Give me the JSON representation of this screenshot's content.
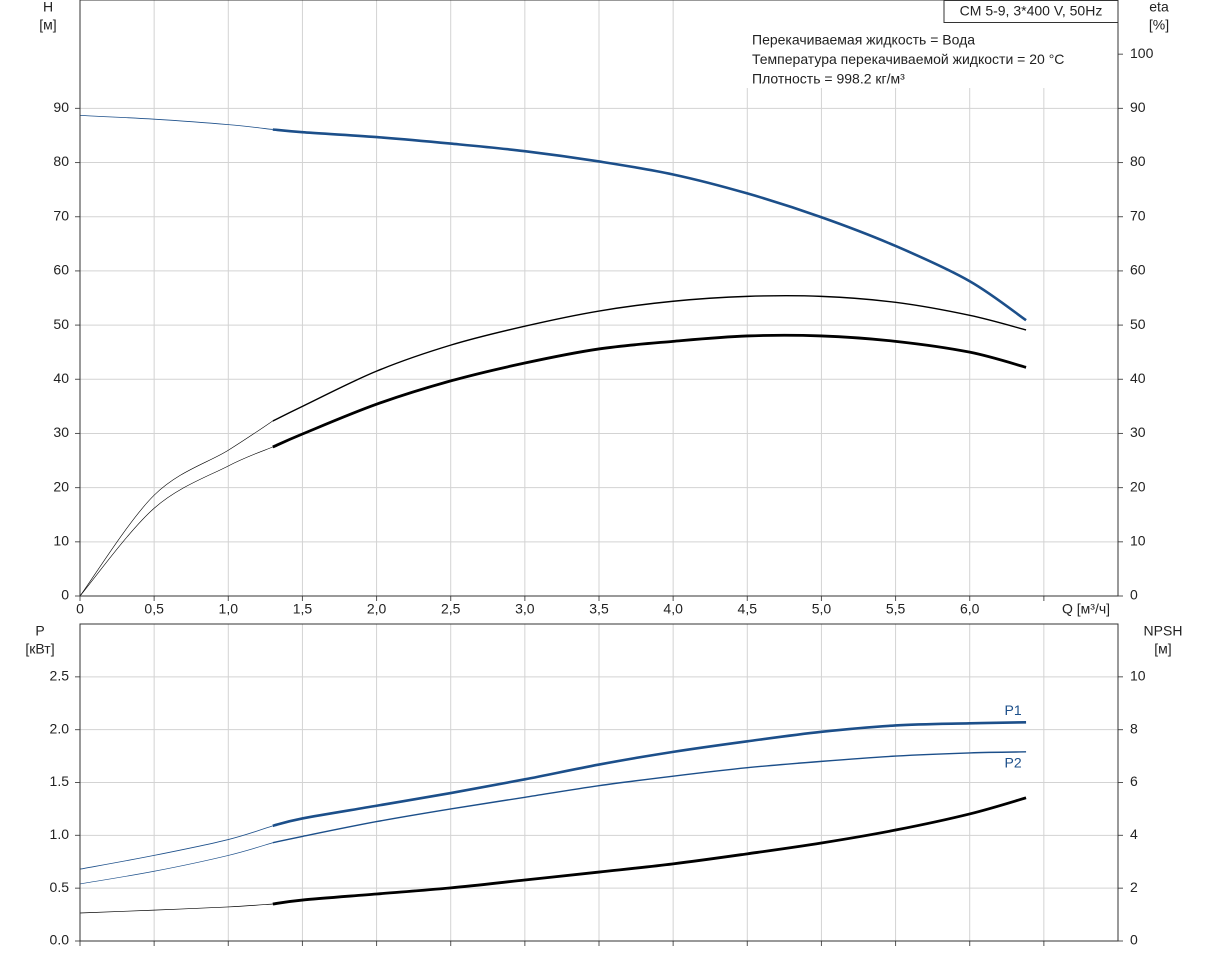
{
  "chart_data": [
    {
      "type": "line",
      "title": "CM 5-9, 3*400 V, 50Hz",
      "annotations": [
        "Перекачиваемая жидкость = Вода",
        "Температура перекачиваемой жидкости = 20 °C",
        "Плотность = 998.2 кг/м³"
      ],
      "xlabel": "Q [м³/ч]",
      "ylabel": "H",
      "yunit": "[м]",
      "y2label": "eta",
      "y2unit": "[%]",
      "x": [
        0,
        0.5,
        1.0,
        1.3,
        1.5,
        2.0,
        2.5,
        3.0,
        3.5,
        4.0,
        4.5,
        5.0,
        5.5,
        6.0,
        6.38
      ],
      "xlim": [
        0,
        7
      ],
      "ylim": [
        0,
        110
      ],
      "y2lim": [
        0,
        110
      ],
      "xticks": [
        0,
        {
          "value": 0.5,
          "label": "0,5"
        },
        {
          "value": 1,
          "label": "1,0"
        },
        {
          "value": 1.5,
          "label": "1,5"
        },
        {
          "value": 2,
          "label": "2,0"
        },
        {
          "value": 2.5,
          "label": "2,5"
        },
        {
          "value": 3,
          "label": "3,0"
        },
        {
          "value": 3.5,
          "label": "3,5"
        },
        {
          "value": 4,
          "label": "4,0"
        },
        {
          "value": 4.5,
          "label": "4,5"
        },
        {
          "value": 5,
          "label": "5,0"
        },
        {
          "value": 5.5,
          "label": "5,5"
        },
        {
          "value": 6,
          "label": "6,0"
        }
      ],
      "xgrid": [
        0,
        0.5,
        1,
        1.5,
        2,
        2.5,
        3,
        3.5,
        4,
        4.5,
        5,
        5.5,
        6,
        6.5
      ],
      "yticks": [
        0,
        10,
        20,
        30,
        40,
        50,
        60,
        70,
        80,
        90
      ],
      "y2ticks": [
        0,
        10,
        20,
        30,
        40,
        50,
        60,
        70,
        80,
        90,
        100
      ],
      "grid": true,
      "series": [
        {
          "color": "#1c4f8a",
          "width": 0.8,
          "values": [
            88.7,
            88.0,
            87.0,
            86.1,
            null,
            null,
            null,
            null,
            null,
            null,
            null,
            null,
            null,
            null,
            null
          ]
        },
        {
          "color": "#1c4f8a",
          "width": 2.6,
          "values": [
            null,
            null,
            null,
            86.1,
            85.6,
            84.7,
            83.5,
            82.1,
            80.2,
            77.8,
            74.3,
            69.9,
            64.6,
            58.1,
            50.9
          ]
        },
        {
          "color": "#000000",
          "width": 0.6,
          "axis": "y2",
          "values": [
            0,
            18.6,
            26.9,
            32.3,
            null,
            null,
            null,
            null,
            null,
            null,
            null,
            null,
            null,
            null,
            null
          ]
        },
        {
          "color": "#000000",
          "width": 1.4,
          "axis": "y2",
          "values": [
            null,
            null,
            null,
            32.3,
            35.0,
            41.5,
            46.3,
            49.8,
            52.6,
            54.4,
            55.3,
            55.3,
            54.2,
            51.8,
            49.1
          ]
        },
        {
          "color": "#000000",
          "width": 0.6,
          "axis": "y2",
          "values": [
            0,
            16.2,
            24.0,
            27.5,
            null,
            null,
            null,
            null,
            null,
            null,
            null,
            null,
            null,
            null,
            null
          ]
        },
        {
          "color": "#000000",
          "width": 2.8,
          "axis": "y2",
          "values": [
            null,
            null,
            null,
            27.5,
            29.9,
            35.4,
            39.7,
            43.0,
            45.6,
            47.0,
            48.0,
            48.0,
            47.0,
            45.0,
            42.2
          ]
        }
      ]
    },
    {
      "type": "line",
      "ylabel": "P",
      "yunit": "[кВт]",
      "y2label": "NPSH",
      "y2unit": "[м]",
      "x": [
        0,
        0.5,
        1.0,
        1.3,
        1.5,
        2.0,
        2.5,
        3.0,
        3.5,
        4.0,
        4.5,
        5.0,
        5.5,
        6.0,
        6.38
      ],
      "xlim": [
        0,
        7
      ],
      "ylim": [
        0,
        3.0
      ],
      "y2lim": [
        0,
        12
      ],
      "xgrid": [
        0,
        0.5,
        1,
        1.5,
        2,
        2.5,
        3,
        3.5,
        4,
        4.5,
        5,
        5.5,
        6,
        6.5
      ],
      "yticks": [
        {
          "value": 0,
          "label": "0.0"
        },
        0.5,
        {
          "value": 1,
          "label": "1.0"
        },
        1.5,
        {
          "value": 2,
          "label": "2.0"
        },
        2.5
      ],
      "y2ticks": [
        0,
        2,
        4,
        6,
        8,
        10
      ],
      "grid": true,
      "series": [
        {
          "color": "#1c4f8a",
          "width": 0.8,
          "values": [
            0.68,
            0.81,
            0.96,
            1.09,
            null,
            null,
            null,
            null,
            null,
            null,
            null,
            null,
            null,
            null,
            null
          ]
        },
        {
          "name": "P1",
          "color": "#1c4f8a",
          "width": 2.6,
          "values": [
            null,
            null,
            null,
            1.09,
            1.16,
            1.28,
            1.4,
            1.53,
            1.67,
            1.79,
            1.89,
            1.98,
            2.04,
            2.06,
            2.07
          ]
        },
        {
          "color": "#1c4f8a",
          "width": 0.7,
          "values": [
            0.54,
            0.66,
            0.81,
            0.93,
            null,
            null,
            null,
            null,
            null,
            null,
            null,
            null,
            null,
            null,
            null
          ]
        },
        {
          "name": "P2",
          "color": "#1c4f8a",
          "width": 1.4,
          "values": [
            null,
            null,
            null,
            0.93,
            0.99,
            1.13,
            1.25,
            1.36,
            1.47,
            1.56,
            1.64,
            1.7,
            1.75,
            1.78,
            1.79
          ]
        },
        {
          "color": "#000000",
          "width": 0.7,
          "axis": "y2",
          "values": [
            1.06,
            1.17,
            1.29,
            1.4,
            null,
            null,
            null,
            null,
            null,
            null,
            null,
            null,
            null,
            null,
            null
          ]
        },
        {
          "color": "#000000",
          "width": 2.8,
          "axis": "y2",
          "values": [
            null,
            null,
            null,
            1.4,
            1.55,
            1.78,
            2.01,
            2.31,
            2.61,
            2.92,
            3.3,
            3.71,
            4.2,
            4.81,
            5.42
          ]
        }
      ]
    }
  ]
}
